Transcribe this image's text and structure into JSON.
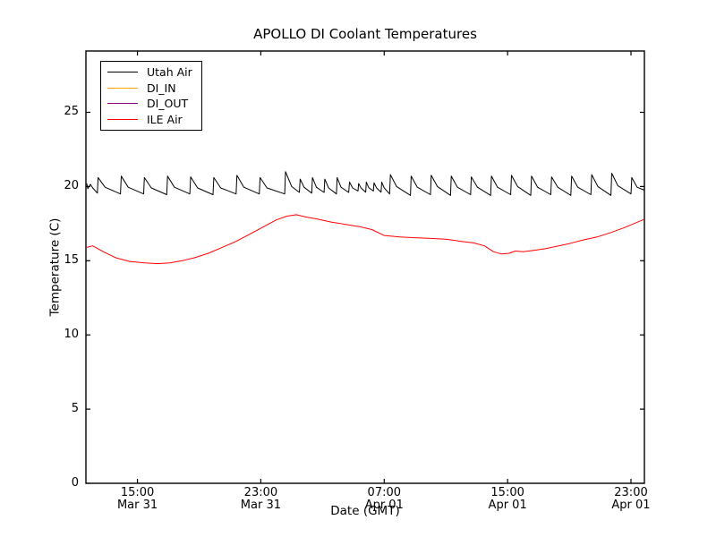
{
  "chart": {
    "title": "APOLLO DI Coolant Temperatures",
    "xlabel": "Date (GMT)",
    "ylabel": "Temperature (C)"
  },
  "chart_data": {
    "type": "line",
    "title": "APOLLO DI Coolant Temperatures",
    "xlabel": "Date (GMT)",
    "ylabel": "Temperature (C)",
    "x_unit": "hours since Mar 31 00:00 GMT",
    "xlim": [
      11.66,
      47.87
    ],
    "ylim": [
      0,
      29.13
    ],
    "grid": false,
    "legend_position": "upper left",
    "y_ticks": [
      0,
      5,
      10,
      15,
      20,
      25
    ],
    "x_ticks": [
      {
        "t": 15,
        "time": "15:00",
        "date": "Mar 31"
      },
      {
        "t": 23,
        "time": "23:00",
        "date": "Mar 31"
      },
      {
        "t": 31,
        "time": "07:00",
        "date": "Apr 01"
      },
      {
        "t": 39,
        "time": "15:00",
        "date": "Apr 01"
      },
      {
        "t": 47,
        "time": "23:00",
        "date": "Apr 01"
      }
    ],
    "series": [
      {
        "name": "Utah Air",
        "color": "#000000",
        "points": [
          [
            11.72,
            20.2
          ],
          [
            11.78,
            19.85
          ],
          [
            11.95,
            20.15
          ],
          [
            12.1,
            19.9
          ],
          [
            12.4,
            19.55
          ],
          [
            12.45,
            20.6
          ],
          [
            12.9,
            19.95
          ],
          [
            13.9,
            19.5
          ],
          [
            13.95,
            20.7
          ],
          [
            14.4,
            19.95
          ],
          [
            15.4,
            19.5
          ],
          [
            15.45,
            20.6
          ],
          [
            15.9,
            19.9
          ],
          [
            16.9,
            19.45
          ],
          [
            16.95,
            20.7
          ],
          [
            17.4,
            19.95
          ],
          [
            18.4,
            19.5
          ],
          [
            18.45,
            20.65
          ],
          [
            18.9,
            19.9
          ],
          [
            19.9,
            19.45
          ],
          [
            19.95,
            20.6
          ],
          [
            20.4,
            19.9
          ],
          [
            21.4,
            19.5
          ],
          [
            21.45,
            20.75
          ],
          [
            21.9,
            19.95
          ],
          [
            22.9,
            19.5
          ],
          [
            22.95,
            20.6
          ],
          [
            23.4,
            19.9
          ],
          [
            24.55,
            19.5
          ],
          [
            24.6,
            21.0
          ],
          [
            25.0,
            20.0
          ],
          [
            25.5,
            19.6
          ],
          [
            25.55,
            20.5
          ],
          [
            25.8,
            19.95
          ],
          [
            26.3,
            19.55
          ],
          [
            26.35,
            20.6
          ],
          [
            26.6,
            19.95
          ],
          [
            27.1,
            19.6
          ],
          [
            27.15,
            20.5
          ],
          [
            27.4,
            19.9
          ],
          [
            27.9,
            19.5
          ],
          [
            27.95,
            20.6
          ],
          [
            28.2,
            19.95
          ],
          [
            28.7,
            19.6
          ],
          [
            28.75,
            20.3
          ],
          [
            28.95,
            19.9
          ],
          [
            29.3,
            19.7
          ],
          [
            29.34,
            20.2
          ],
          [
            29.5,
            19.9
          ],
          [
            29.8,
            19.62
          ],
          [
            29.84,
            20.3
          ],
          [
            30.0,
            19.92
          ],
          [
            30.3,
            19.7
          ],
          [
            30.34,
            20.25
          ],
          [
            30.5,
            19.9
          ],
          [
            30.8,
            19.62
          ],
          [
            30.84,
            20.3
          ],
          [
            31.0,
            19.9
          ],
          [
            31.35,
            19.5
          ],
          [
            31.4,
            20.8
          ],
          [
            31.8,
            20.0
          ],
          [
            32.7,
            19.4
          ],
          [
            32.75,
            20.7
          ],
          [
            33.15,
            19.95
          ],
          [
            34.0,
            19.45
          ],
          [
            34.05,
            20.75
          ],
          [
            34.45,
            20.0
          ],
          [
            35.3,
            19.4
          ],
          [
            35.35,
            20.7
          ],
          [
            35.75,
            19.95
          ],
          [
            36.6,
            19.45
          ],
          [
            36.65,
            20.65
          ],
          [
            37.05,
            19.95
          ],
          [
            37.9,
            19.4
          ],
          [
            37.95,
            20.7
          ],
          [
            38.35,
            19.95
          ],
          [
            39.2,
            19.45
          ],
          [
            39.25,
            20.75
          ],
          [
            39.65,
            20.0
          ],
          [
            40.5,
            19.4
          ],
          [
            40.55,
            20.7
          ],
          [
            40.95,
            19.95
          ],
          [
            41.8,
            19.45
          ],
          [
            41.85,
            20.65
          ],
          [
            42.25,
            19.95
          ],
          [
            43.1,
            19.4
          ],
          [
            43.15,
            20.7
          ],
          [
            43.55,
            19.95
          ],
          [
            44.4,
            19.45
          ],
          [
            44.45,
            20.8
          ],
          [
            44.85,
            20.0
          ],
          [
            45.7,
            19.4
          ],
          [
            45.75,
            20.9
          ],
          [
            46.15,
            20.05
          ],
          [
            47.0,
            19.5
          ],
          [
            47.05,
            20.6
          ],
          [
            47.4,
            19.95
          ],
          [
            47.87,
            19.75
          ]
        ]
      },
      {
        "name": "DI_IN",
        "color": "#ffa500",
        "points": []
      },
      {
        "name": "DI_OUT",
        "color": "#800080",
        "points": []
      },
      {
        "name": "ILE Air",
        "color": "#ff0000",
        "points": [
          [
            11.72,
            15.9
          ],
          [
            12.1,
            16.0
          ],
          [
            12.8,
            15.6
          ],
          [
            13.6,
            15.2
          ],
          [
            14.5,
            14.95
          ],
          [
            15.5,
            14.85
          ],
          [
            16.3,
            14.8
          ],
          [
            17.1,
            14.85
          ],
          [
            17.9,
            15.0
          ],
          [
            18.7,
            15.2
          ],
          [
            19.6,
            15.5
          ],
          [
            20.5,
            15.9
          ],
          [
            21.4,
            16.3
          ],
          [
            22.3,
            16.8
          ],
          [
            23.2,
            17.3
          ],
          [
            24.0,
            17.75
          ],
          [
            24.7,
            18.0
          ],
          [
            25.3,
            18.1
          ],
          [
            25.9,
            17.95
          ],
          [
            26.7,
            17.8
          ],
          [
            27.6,
            17.6
          ],
          [
            28.5,
            17.45
          ],
          [
            29.4,
            17.3
          ],
          [
            30.2,
            17.1
          ],
          [
            31.0,
            16.7
          ],
          [
            32.0,
            16.6
          ],
          [
            33.0,
            16.55
          ],
          [
            34.0,
            16.5
          ],
          [
            35.0,
            16.45
          ],
          [
            36.0,
            16.3
          ],
          [
            36.8,
            16.2
          ],
          [
            37.5,
            16.0
          ],
          [
            38.1,
            15.6
          ],
          [
            38.6,
            15.45
          ],
          [
            39.1,
            15.5
          ],
          [
            39.5,
            15.65
          ],
          [
            40.0,
            15.6
          ],
          [
            40.7,
            15.7
          ],
          [
            41.4,
            15.8
          ],
          [
            42.1,
            15.95
          ],
          [
            43.0,
            16.15
          ],
          [
            43.9,
            16.4
          ],
          [
            44.8,
            16.6
          ],
          [
            45.7,
            16.9
          ],
          [
            46.5,
            17.2
          ],
          [
            47.2,
            17.5
          ],
          [
            47.87,
            17.8
          ]
        ]
      }
    ]
  }
}
